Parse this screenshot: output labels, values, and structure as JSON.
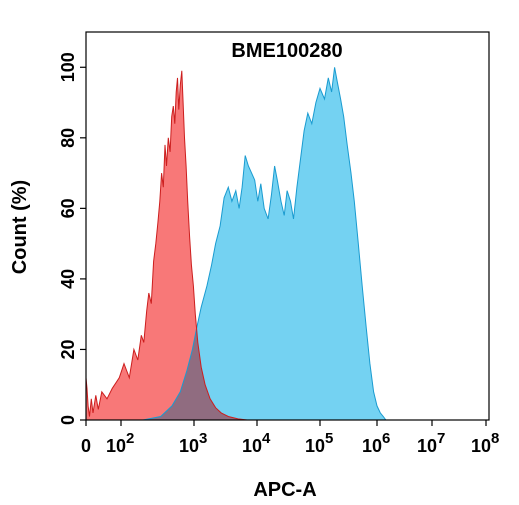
{
  "chart_data": {
    "type": "area",
    "title": "BME100280",
    "xlabel": "APC-A",
    "ylabel": "Count  (%)",
    "x_scale": "biexponential",
    "ylim": [
      0,
      110
    ],
    "grid": false,
    "legend": "none",
    "x_ticks": [
      {
        "value": 0,
        "base": "0",
        "exp": ""
      },
      {
        "value": 100,
        "base": "10",
        "exp": "2"
      },
      {
        "value": 1000,
        "base": "10",
        "exp": "3"
      },
      {
        "value": 10000,
        "base": "10",
        "exp": "4"
      },
      {
        "value": 100000,
        "base": "10",
        "exp": "5"
      },
      {
        "value": 1000000,
        "base": "10",
        "exp": "6"
      },
      {
        "value": 10000000,
        "base": "10",
        "exp": "7"
      },
      {
        "value": 100000000,
        "base": "10",
        "exp": "8"
      }
    ],
    "y_ticks": [
      0,
      20,
      40,
      60,
      80,
      100
    ],
    "colors": {
      "control_fill": "#f87878",
      "control_line": "#cc1e1e",
      "sample_fill": "#74d2f2",
      "sample_line": "#1a9bd0",
      "overlap_fill": "#906c80"
    },
    "series": [
      {
        "fill": "#f87878",
        "line": "#cc1e1e",
        "points": [
          [
            0,
            12
          ],
          [
            3,
            9
          ],
          [
            6,
            4
          ],
          [
            10,
            1
          ],
          [
            15,
            6
          ],
          [
            20,
            2
          ],
          [
            28,
            7
          ],
          [
            35,
            3
          ],
          [
            45,
            8
          ],
          [
            60,
            6
          ],
          [
            75,
            9
          ],
          [
            95,
            12
          ],
          [
            110,
            16
          ],
          [
            130,
            12
          ],
          [
            150,
            20
          ],
          [
            170,
            17
          ],
          [
            190,
            24
          ],
          [
            205,
            22
          ],
          [
            225,
            31
          ],
          [
            240,
            36
          ],
          [
            260,
            33
          ],
          [
            280,
            45
          ],
          [
            300,
            50
          ],
          [
            320,
            56
          ],
          [
            340,
            62
          ],
          [
            360,
            70
          ],
          [
            380,
            66
          ],
          [
            400,
            78
          ],
          [
            420,
            72
          ],
          [
            445,
            80
          ],
          [
            470,
            76
          ],
          [
            495,
            86
          ],
          [
            520,
            89
          ],
          [
            545,
            84
          ],
          [
            570,
            93
          ],
          [
            595,
            97
          ],
          [
            620,
            88
          ],
          [
            650,
            95
          ],
          [
            680,
            99
          ],
          [
            710,
            90
          ],
          [
            740,
            80
          ],
          [
            780,
            72
          ],
          [
            820,
            62
          ],
          [
            870,
            52
          ],
          [
            920,
            44
          ],
          [
            980,
            38
          ],
          [
            1050,
            30
          ],
          [
            1150,
            22
          ],
          [
            1300,
            15
          ],
          [
            1500,
            10
          ],
          [
            1800,
            6
          ],
          [
            2200,
            3.5
          ],
          [
            2700,
            2
          ],
          [
            3500,
            1
          ],
          [
            5000,
            0.3
          ],
          [
            7000,
            0
          ]
        ]
      },
      {
        "fill": "#74d2f2",
        "line": "#1a9bd0",
        "points": [
          [
            0,
            0
          ],
          [
            200,
            0
          ],
          [
            350,
            1
          ],
          [
            500,
            4
          ],
          [
            650,
            8
          ],
          [
            800,
            14
          ],
          [
            950,
            20
          ],
          [
            1100,
            26
          ],
          [
            1300,
            32
          ],
          [
            1600,
            38
          ],
          [
            1900,
            44
          ],
          [
            2200,
            50
          ],
          [
            2600,
            55
          ],
          [
            3000,
            63
          ],
          [
            3500,
            66
          ],
          [
            4000,
            62
          ],
          [
            4600,
            65
          ],
          [
            5200,
            60
          ],
          [
            5800,
            66
          ],
          [
            6500,
            75
          ],
          [
            7300,
            72
          ],
          [
            8200,
            70
          ],
          [
            9200,
            68
          ],
          [
            10300,
            62
          ],
          [
            11500,
            67
          ],
          [
            13000,
            60
          ],
          [
            15000,
            57
          ],
          [
            17000,
            64
          ],
          [
            19000,
            72
          ],
          [
            21000,
            68
          ],
          [
            24000,
            62
          ],
          [
            27000,
            58
          ],
          [
            30000,
            65
          ],
          [
            34000,
            62
          ],
          [
            38000,
            57
          ],
          [
            43000,
            66
          ],
          [
            49000,
            74
          ],
          [
            56000,
            82
          ],
          [
            64000,
            87
          ],
          [
            74000,
            84
          ],
          [
            86000,
            90
          ],
          [
            100000,
            94
          ],
          [
            120000,
            91
          ],
          [
            140000,
            97
          ],
          [
            160000,
            93
          ],
          [
            180000,
            100
          ],
          [
            200000,
            96
          ],
          [
            230000,
            91
          ],
          [
            260000,
            86
          ],
          [
            300000,
            78
          ],
          [
            350000,
            70
          ],
          [
            400000,
            62
          ],
          [
            470000,
            50
          ],
          [
            550000,
            38
          ],
          [
            650000,
            26
          ],
          [
            750000,
            16
          ],
          [
            870000,
            8
          ],
          [
            1000000,
            4
          ],
          [
            1150000,
            2
          ],
          [
            1300000,
            1
          ],
          [
            1450000,
            0
          ]
        ]
      }
    ]
  }
}
